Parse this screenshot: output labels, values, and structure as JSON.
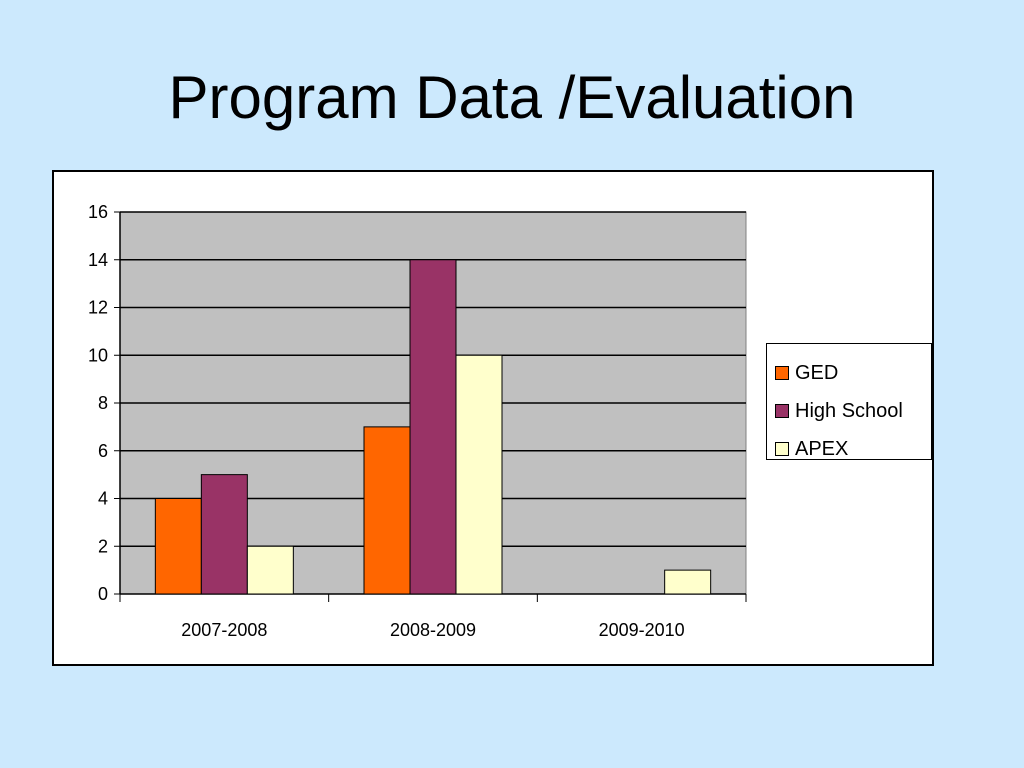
{
  "slide": {
    "title": "Program Data /Evaluation"
  },
  "chart_data": {
    "type": "bar",
    "categories": [
      "2007-2008",
      "2008-2009",
      "2009-2010"
    ],
    "series": [
      {
        "name": "GED",
        "values": [
          4,
          7,
          0
        ],
        "color": "#ff6600"
      },
      {
        "name": "High School",
        "values": [
          5,
          14,
          0
        ],
        "color": "#993366"
      },
      {
        "name": "APEX",
        "values": [
          2,
          10,
          1
        ],
        "color": "#ffffcc"
      }
    ],
    "ylim": [
      0,
      16
    ],
    "yticks": [
      0,
      2,
      4,
      6,
      8,
      10,
      12,
      14,
      16
    ],
    "grid": true,
    "plot_background": "#c0c0c0",
    "legend_position": "right"
  }
}
